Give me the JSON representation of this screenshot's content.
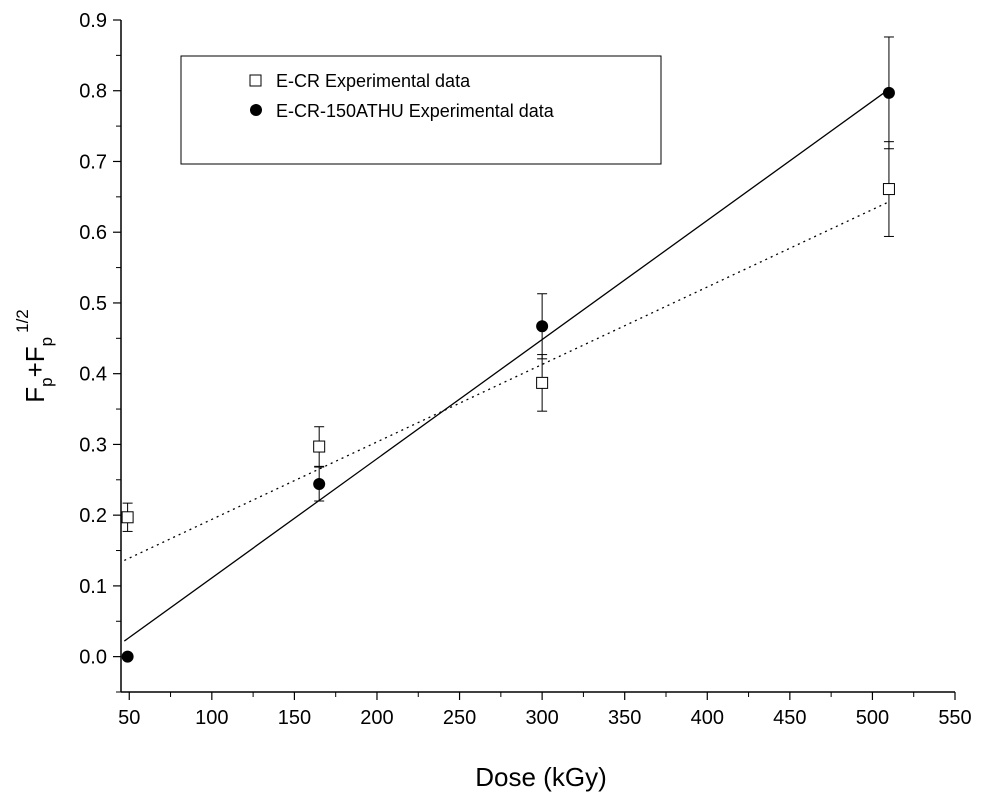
{
  "chart_data": {
    "type": "scatter",
    "title": "",
    "xlabel": "Dose (kGy)",
    "ylabel": {
      "main_1": "F",
      "sub_1": "p",
      "plus": "+F",
      "sub_2": "p",
      "sup": "1/2"
    },
    "xlim": [
      45,
      550
    ],
    "ylim": [
      -0.05,
      0.9
    ],
    "x_ticks": [
      "50",
      "100",
      "150",
      "200",
      "250",
      "300",
      "350",
      "400",
      "450",
      "500",
      "550"
    ],
    "y_ticks": [
      "0.0",
      "0.1",
      "0.2",
      "0.3",
      "0.4",
      "0.5",
      "0.6",
      "0.7",
      "0.8",
      "0.9"
    ],
    "grid": false,
    "legend_position": "top-left",
    "series": [
      {
        "name": "E-CR Experimental data",
        "marker": "open-square",
        "color": "#000000",
        "x": [
          49,
          165,
          300,
          510
        ],
        "y": [
          0.197,
          0.297,
          0.387,
          0.661
        ],
        "err": [
          0.02,
          0.028,
          0.04,
          0.067
        ],
        "fit": {
          "style": "dotted",
          "x": [
            47,
            510
          ],
          "y": [
            0.136,
            0.643
          ]
        }
      },
      {
        "name": "E-CR-150ATHU Experimental data",
        "marker": "filled-circle",
        "color": "#000000",
        "x": [
          49,
          165,
          300,
          510
        ],
        "y": [
          0.0,
          0.244,
          0.467,
          0.797
        ],
        "err": [
          0.0,
          0.024,
          0.046,
          0.079
        ],
        "fit": {
          "style": "solid",
          "x": [
            47,
            510
          ],
          "y": [
            0.022,
            0.802
          ]
        }
      }
    ]
  }
}
